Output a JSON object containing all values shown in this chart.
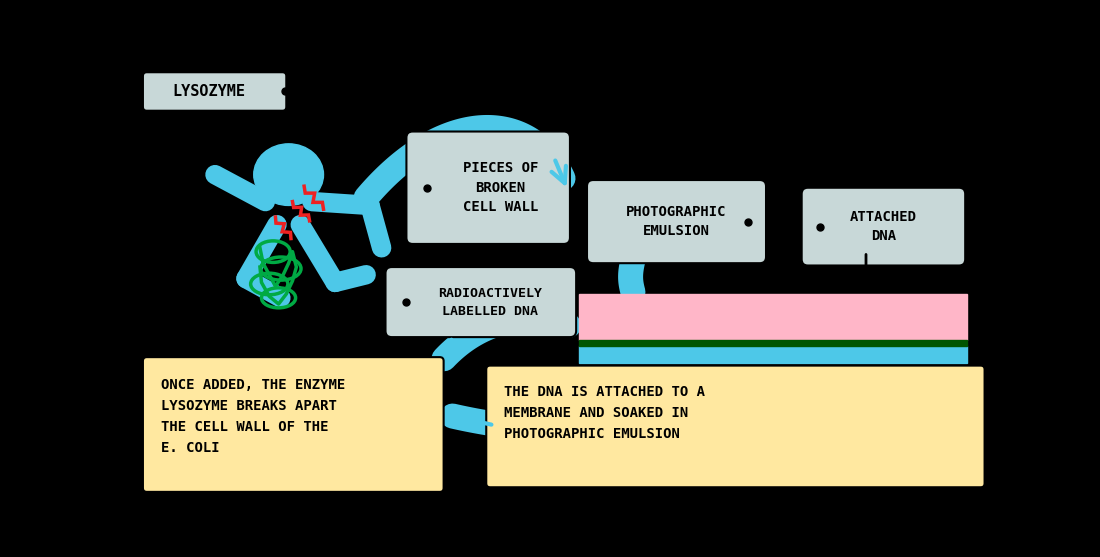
{
  "bg_color": "#000000",
  "cyan": "#4DC8E8",
  "green": "#00AA44",
  "red": "#EE2222",
  "pink": "#FFB6C8",
  "dark_green_line": "#005500",
  "label_bg_gray": "#C8D8D8",
  "label_bg_gray2": "#D0D8D8",
  "orange_bg": "#FFE8A0",
  "text_color": "#000000",
  "labels": {
    "lysozyme": "LYSOZYME",
    "pieces": "PIECES OF\nBROKEN\nCELL WALL",
    "photographic": "PHOTOGRAPHIC\nEMULSION",
    "attached": "ATTACHED\nDNA",
    "radioactive": "RADIOACTIVELY\nLABELLED DNA",
    "bottom_left": "ONCE ADDED, THE ENZYME\nLYSOZYME BREAKS APART\nTHE CELL WALL OF THE\nE. COLI",
    "bottom_right": "THE DNA IS ATTACHED TO A\nMEMBRANE AND SOAKED IN\nPHOTOGRAPHIC EMULSION"
  }
}
